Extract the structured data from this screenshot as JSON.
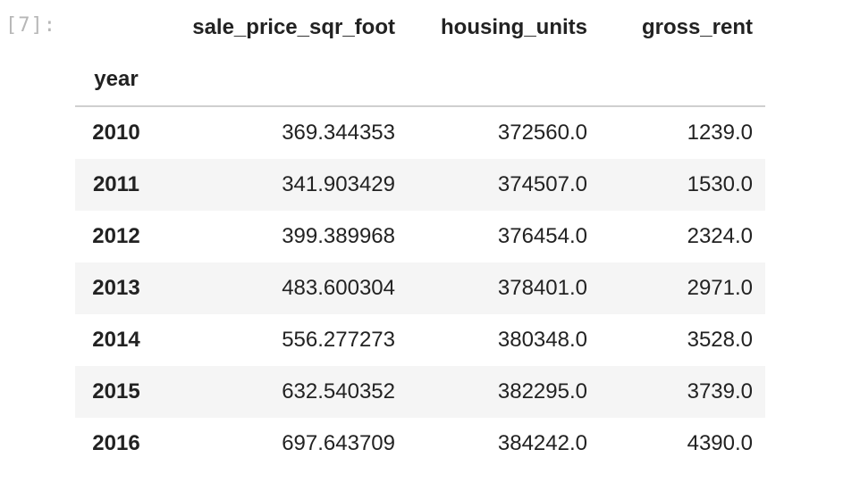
{
  "cell": {
    "prompt": "[7]:"
  },
  "table": {
    "columns": [
      "sale_price_sqr_foot",
      "housing_units",
      "gross_rent"
    ],
    "index_name": "year",
    "rows": [
      {
        "index": "2010",
        "values": [
          "369.344353",
          "372560.0",
          "1239.0"
        ]
      },
      {
        "index": "2011",
        "values": [
          "341.903429",
          "374507.0",
          "1530.0"
        ]
      },
      {
        "index": "2012",
        "values": [
          "399.389968",
          "376454.0",
          "2324.0"
        ]
      },
      {
        "index": "2013",
        "values": [
          "483.600304",
          "378401.0",
          "2971.0"
        ]
      },
      {
        "index": "2014",
        "values": [
          "556.277273",
          "380348.0",
          "3528.0"
        ]
      },
      {
        "index": "2015",
        "values": [
          "632.540352",
          "382295.0",
          "3739.0"
        ]
      },
      {
        "index": "2016",
        "values": [
          "697.643709",
          "384242.0",
          "4390.0"
        ]
      }
    ]
  },
  "colors": {
    "prompt": "#b7b7b7",
    "stripe": "#f5f5f5",
    "header_rule": "#cfcfcf",
    "text": "#222222"
  }
}
